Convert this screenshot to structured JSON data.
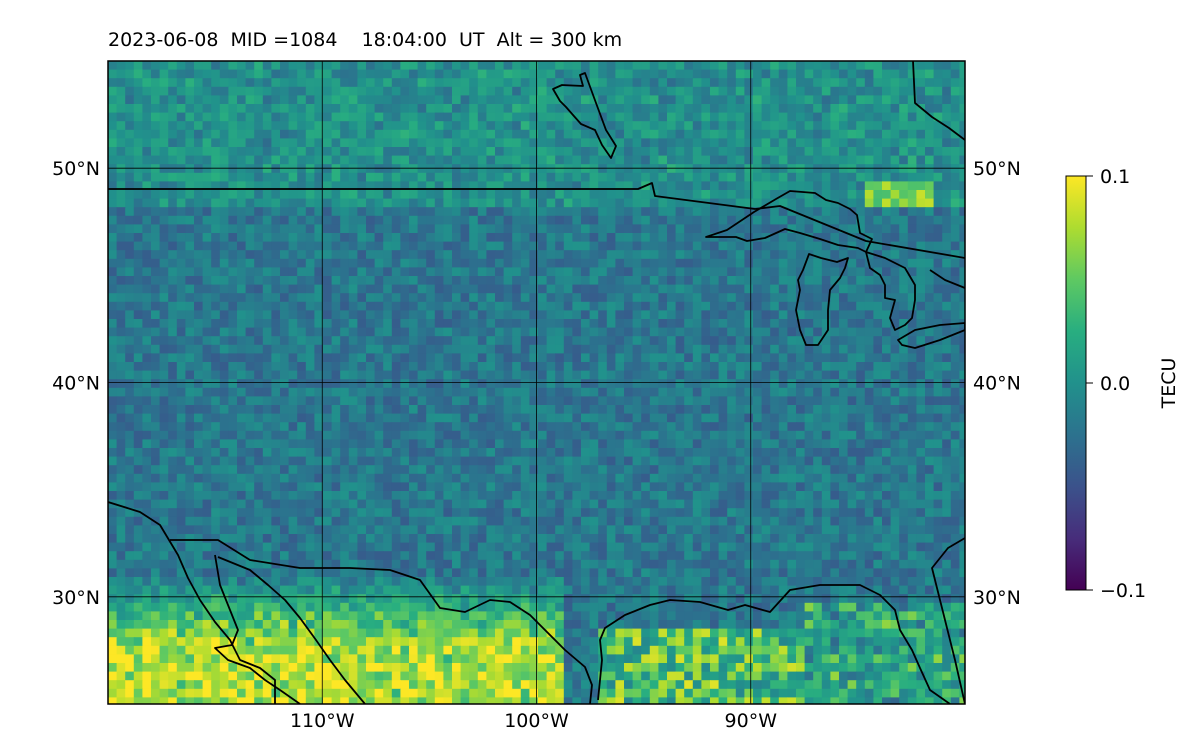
{
  "header": {
    "title": "2023-06-08  MID =1084    18:04:00  UT  Alt = 300 km"
  },
  "map": {
    "projection": "equirectangular",
    "lon_range": [
      -120,
      -80
    ],
    "lat_range": [
      25,
      55
    ],
    "gridlines": true,
    "field": "TEC perturbation",
    "lat_ticks": [
      {
        "value": 50,
        "label": "50°N"
      },
      {
        "value": 40,
        "label": "40°N"
      },
      {
        "value": 30,
        "label": "30°N"
      }
    ],
    "lon_ticks": [
      {
        "value": -110,
        "label": "110°W"
      },
      {
        "value": -100,
        "label": "100°W"
      },
      {
        "value": -90,
        "label": "90°W"
      }
    ]
  },
  "colorbar": {
    "label": "TECU",
    "colormap": "viridis",
    "range": [
      -0.1,
      0.1
    ],
    "ticks": [
      {
        "value": 0.1,
        "label": "0.1"
      },
      {
        "value": 0.0,
        "label": "0.0"
      },
      {
        "value": -0.1,
        "label": "−0.1"
      }
    ]
  },
  "colors": {
    "background": "#21918c",
    "coastline": "#000000"
  }
}
